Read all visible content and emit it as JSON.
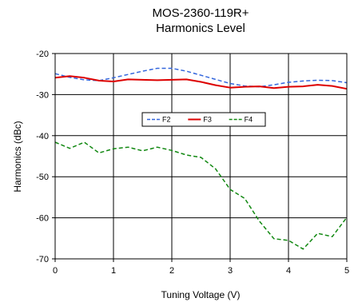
{
  "chart_data": {
    "type": "line",
    "title": "MOS-2360-119R+",
    "subtitle": "Harmonics Level",
    "xlabel": "Tuning Voltage (V)",
    "ylabel": "Harmonics (dBc)",
    "xlim": [
      0,
      5
    ],
    "ylim": [
      -70,
      -20
    ],
    "xticks": [
      "0",
      "1",
      "2",
      "3",
      "4",
      "5"
    ],
    "yticks": [
      "-20",
      "-30",
      "-40",
      "-50",
      "-60",
      "-70"
    ],
    "grid": true,
    "legend_position": "center",
    "series": [
      {
        "name": "F2",
        "color": "#3366dd",
        "dash": "dashed",
        "x": [
          0,
          0.25,
          0.5,
          0.75,
          1.0,
          1.25,
          1.5,
          1.75,
          2.0,
          2.25,
          2.5,
          2.75,
          3.0,
          3.25,
          3.5,
          3.75,
          4.0,
          4.25,
          4.5,
          4.75,
          5.0
        ],
        "y": [
          -24.9,
          -25.8,
          -26.4,
          -26.6,
          -25.9,
          -25.1,
          -24.3,
          -23.6,
          -23.6,
          -24.3,
          -25.3,
          -26.3,
          -27.3,
          -27.9,
          -28.1,
          -27.6,
          -27.0,
          -26.7,
          -26.5,
          -26.6,
          -27.1
        ]
      },
      {
        "name": "F3",
        "color": "#dd0000",
        "dash": "solid",
        "x": [
          0,
          0.25,
          0.5,
          0.75,
          1.0,
          1.25,
          1.5,
          1.75,
          2.0,
          2.25,
          2.5,
          2.75,
          3.0,
          3.25,
          3.5,
          3.75,
          4.0,
          4.25,
          4.5,
          4.75,
          5.0
        ],
        "y": [
          -25.9,
          -25.5,
          -25.9,
          -26.6,
          -26.8,
          -26.3,
          -26.4,
          -26.5,
          -26.4,
          -26.3,
          -26.9,
          -27.7,
          -28.3,
          -28.1,
          -28.0,
          -28.4,
          -28.1,
          -28.0,
          -27.6,
          -27.9,
          -28.6
        ]
      },
      {
        "name": "F4",
        "color": "#118811",
        "dash": "dashed",
        "x": [
          0,
          0.25,
          0.5,
          0.75,
          1.0,
          1.25,
          1.5,
          1.75,
          2.0,
          2.25,
          2.5,
          2.75,
          3.0,
          3.25,
          3.5,
          3.75,
          4.0,
          4.25,
          4.5,
          4.75,
          5.0
        ],
        "y": [
          -41.6,
          -43.1,
          -41.6,
          -44.2,
          -43.2,
          -42.8,
          -43.7,
          -42.8,
          -43.6,
          -44.7,
          -45.3,
          -48.1,
          -53.1,
          -55.3,
          -60.8,
          -65.1,
          -65.5,
          -67.6,
          -63.8,
          -64.6,
          -59.9
        ]
      }
    ]
  }
}
